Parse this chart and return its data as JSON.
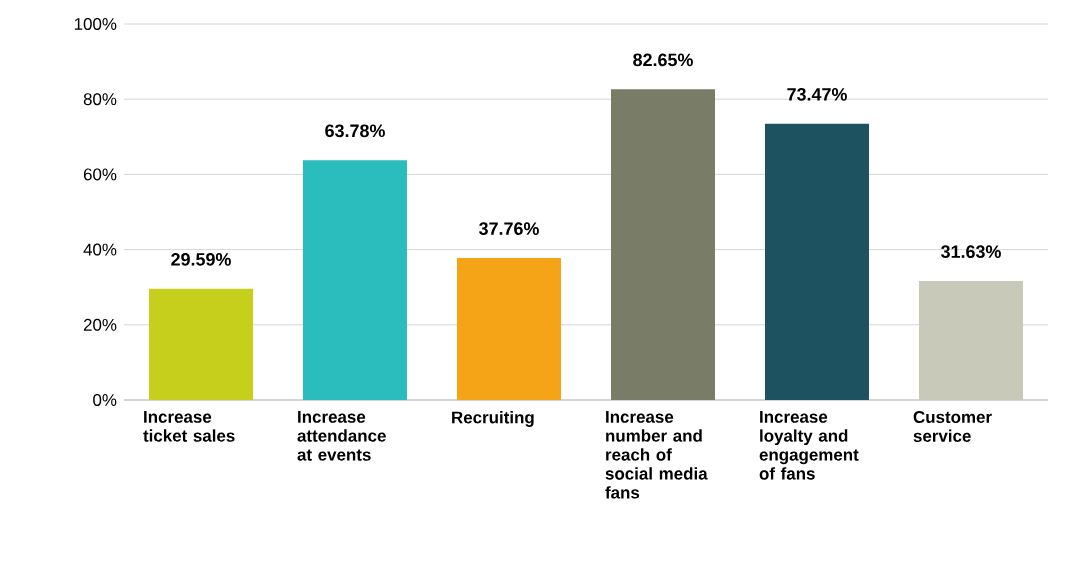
{
  "chart_data": {
    "type": "bar",
    "categories": [
      "Increase ticket sales",
      "Increase attendance at events",
      "Recruiting",
      "Increase number and reach of social media fans",
      "Increase loyalty and engagement of fans",
      "Customer service"
    ],
    "values": [
      29.59,
      63.78,
      37.76,
      82.65,
      73.47,
      31.63
    ],
    "colors": [
      "#c5cf1c",
      "#2bbdbd",
      "#f5a418",
      "#797d68",
      "#1d5360",
      "#c9c9b9"
    ],
    "value_labels": [
      "29.59%",
      "63.78%",
      "37.76%",
      "82.65%",
      "73.47%",
      "31.63%"
    ],
    "ylim": [
      0,
      100
    ],
    "yticks": [
      {
        "value": 0,
        "label": "0%"
      },
      {
        "value": 20,
        "label": "20%"
      },
      {
        "value": 40,
        "label": "40%"
      },
      {
        "value": 60,
        "label": "60%"
      },
      {
        "value": 80,
        "label": "80%"
      },
      {
        "value": 100,
        "label": "100%"
      }
    ],
    "grid": "y"
  }
}
